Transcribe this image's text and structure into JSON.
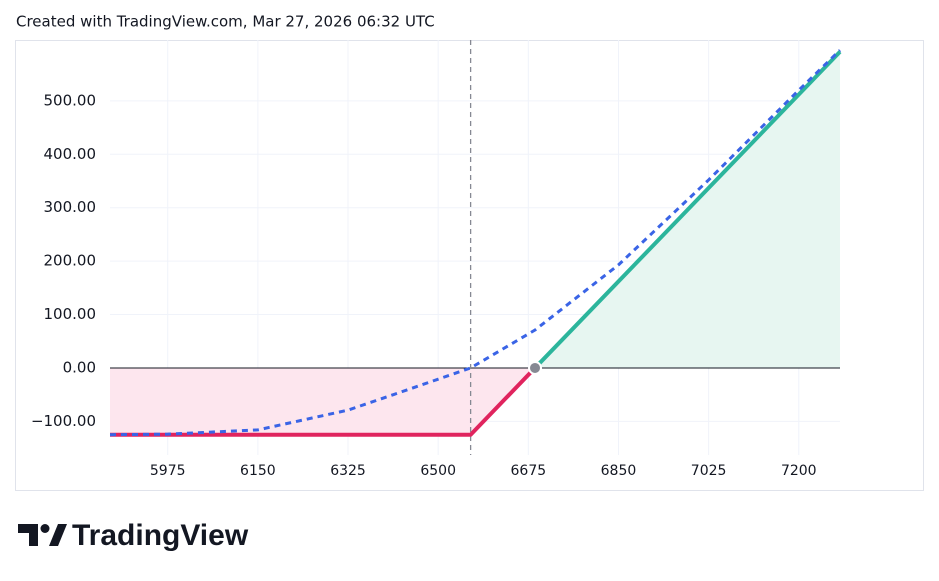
{
  "header": "Created with TradingView.com, Mar 27, 2026 06:32 UTC",
  "brand": "TradingView",
  "chart_data": {
    "type": "line",
    "xlim": [
      5863,
      7280
    ],
    "ylim": [
      -163,
      614
    ],
    "xticks": [
      5975,
      6150,
      6325,
      6500,
      6675,
      6850,
      7025,
      7200
    ],
    "yticks": [
      {
        "value": -100,
        "label": "−100.00"
      },
      {
        "value": 0,
        "label": "0.00"
      },
      {
        "value": 100,
        "label": "100.00"
      },
      {
        "value": 200,
        "label": "200.00"
      },
      {
        "value": 300,
        "label": "300.00"
      },
      {
        "value": 400,
        "label": "400.00"
      },
      {
        "value": 500,
        "label": "500.00"
      }
    ],
    "grid": true,
    "price_line": 6563,
    "breakeven": {
      "x": 6688,
      "value": 0,
      "color": "#868993"
    },
    "series": [
      {
        "color": "#e0245e",
        "fill": "#fde6ee",
        "x": [
          5863,
          6563,
          6688
        ],
        "values": [
          -125,
          -125,
          0
        ]
      },
      {
        "color": "#2cb59c",
        "fill": "#e7f6f1",
        "x": [
          6688,
          7280
        ],
        "values": [
          0,
          592
        ]
      },
      {
        "color": "#3a64e6",
        "dashed": true,
        "x": [
          5863,
          5975,
          6150,
          6325,
          6413,
          6563,
          6688,
          6850,
          7025,
          7200,
          7280
        ],
        "values": [
          -125,
          -124,
          -116,
          -79,
          -50,
          0,
          71,
          193,
          352,
          520,
          595
        ]
      }
    ]
  }
}
